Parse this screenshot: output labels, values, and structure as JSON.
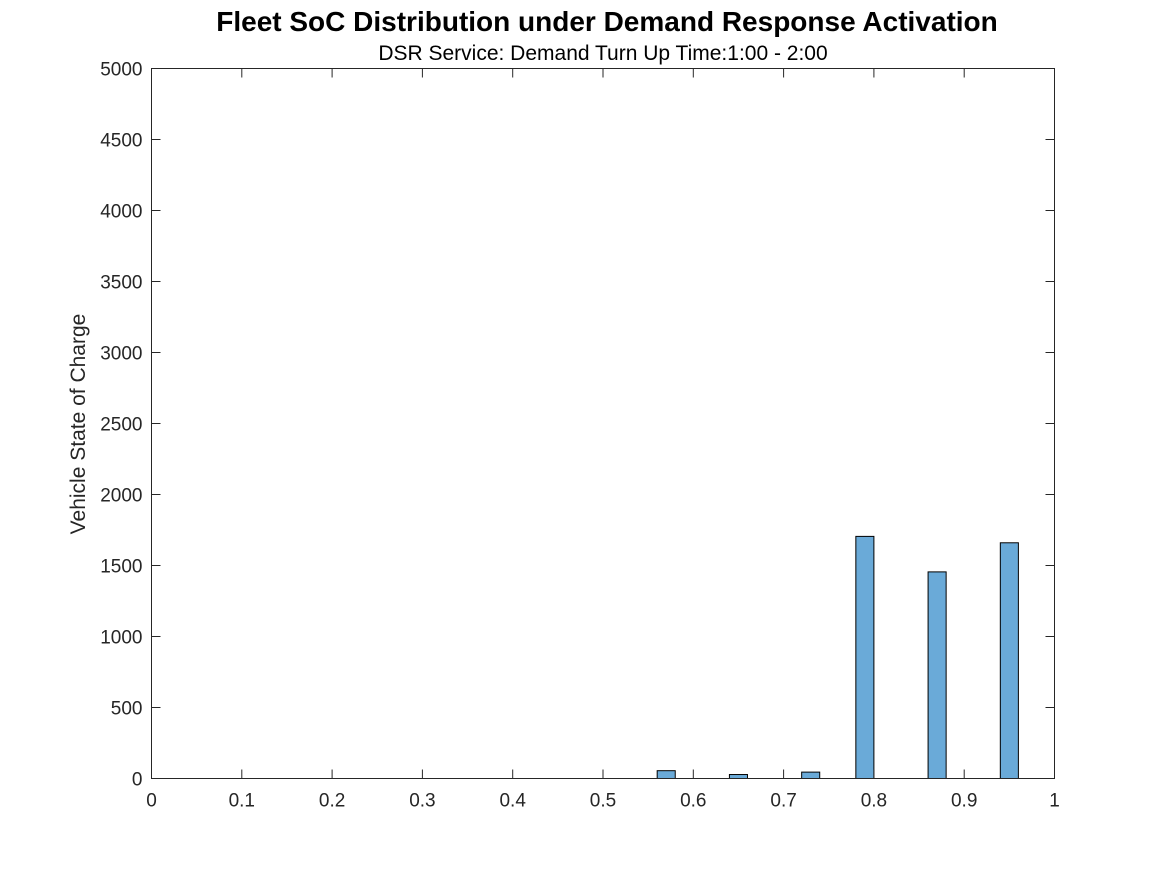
{
  "chart_data": {
    "type": "bar",
    "title": "Fleet SoC Distribution under Demand Response Activation",
    "subtitle": "DSR Service: Demand Turn Up Time:1:00 - 2:00",
    "xlabel": "",
    "ylabel": "Vehicle State of Charge",
    "xlim": [
      0,
      1
    ],
    "ylim": [
      0,
      5000
    ],
    "xticks": [
      0,
      0.1,
      0.2,
      0.3,
      0.4,
      0.5,
      0.6,
      0.7,
      0.8,
      0.9,
      1
    ],
    "xtick_labels": [
      "0",
      "0.1",
      "0.2",
      "0.3",
      "0.4",
      "0.5",
      "0.6",
      "0.7",
      "0.8",
      "0.9",
      "1"
    ],
    "yticks": [
      0,
      500,
      1000,
      1500,
      2000,
      2500,
      3000,
      3500,
      4000,
      4500,
      5000
    ],
    "ytick_labels": [
      "0",
      "500",
      "1000",
      "1500",
      "2000",
      "2500",
      "3000",
      "3500",
      "4000",
      "4500",
      "5000"
    ],
    "bar_width": 0.02,
    "bars": [
      {
        "x": 0.57,
        "value": 55
      },
      {
        "x": 0.65,
        "value": 28
      },
      {
        "x": 0.73,
        "value": 45
      },
      {
        "x": 0.79,
        "value": 1705
      },
      {
        "x": 0.87,
        "value": 1455
      },
      {
        "x": 0.95,
        "value": 1660
      }
    ],
    "grid": false,
    "bar_color": "#6aaad8",
    "bar_edge_color": "#000000"
  }
}
